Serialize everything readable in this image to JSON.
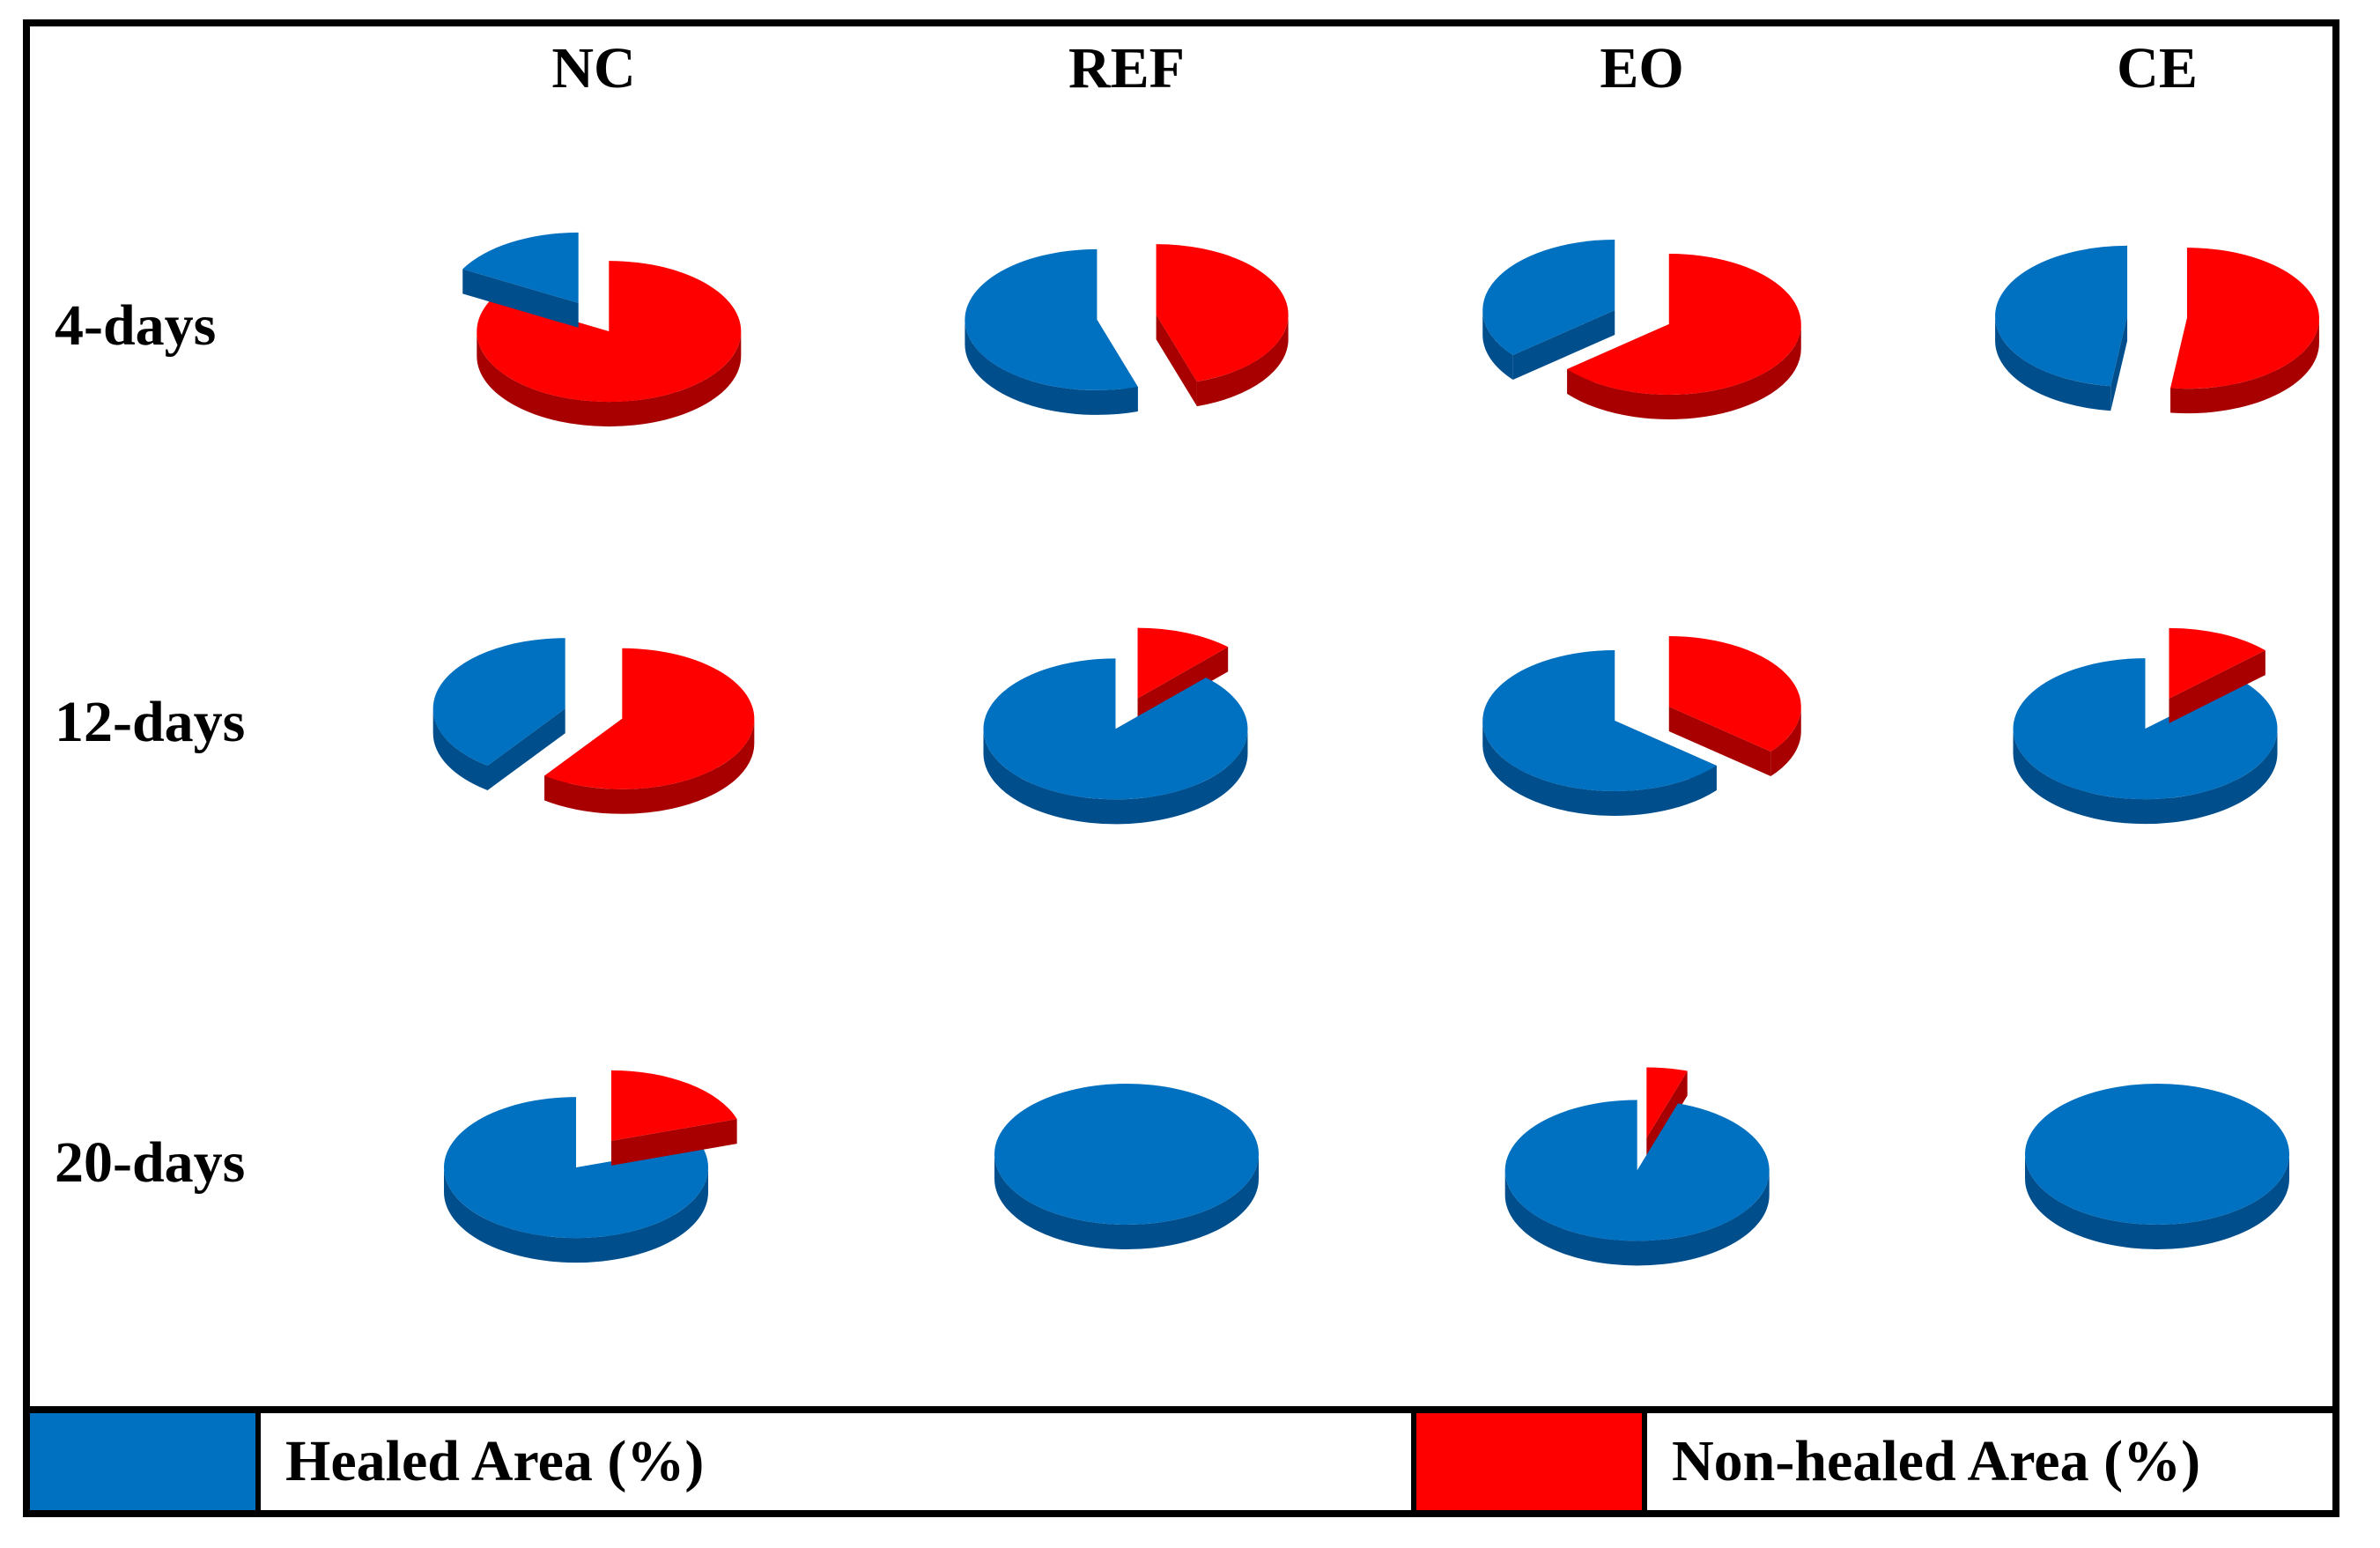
{
  "chart_data": {
    "type": "pie",
    "columns": [
      "NC",
      "REF",
      "EO",
      "CE"
    ],
    "rows": [
      "4-days",
      "12-days",
      "20-days"
    ],
    "series": [
      {
        "name": "Healed Area (%)",
        "color": "#0070C0"
      },
      {
        "name": "Non-healed Area (%)",
        "color": "#FF0000"
      }
    ],
    "values": [
      [
        [
          17,
          83
        ],
        [
          55,
          45
        ],
        [
          36,
          64
        ],
        [
          48,
          52
        ]
      ],
      [
        [
          40,
          60
        ],
        [
          88,
          12
        ],
        [
          64,
          36
        ],
        [
          87,
          13
        ]
      ],
      [
        [
          80,
          20
        ],
        [
          100,
          0
        ],
        [
          95,
          5
        ],
        [
          100,
          0
        ]
      ]
    ],
    "legend_position": "bottom"
  }
}
